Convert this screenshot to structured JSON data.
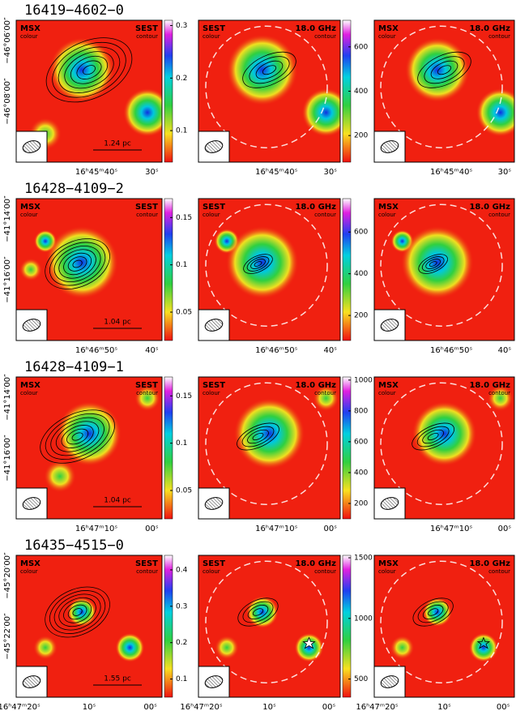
{
  "panel_labels": [
    {
      "left": "MSX",
      "left_sub": "colour",
      "right": "SEST",
      "right_sub": "contour"
    },
    {
      "left": "SEST",
      "left_sub": "colour",
      "right": "18.0 GHz",
      "right_sub": "contour"
    },
    {
      "left": "MSX",
      "left_sub": "colour",
      "right": "18.0 GHz",
      "right_sub": "contour"
    }
  ],
  "rows": [
    {
      "title": "16419−4602−0",
      "scale_bar": "1.24 pc",
      "ra_ticks": [
        "16ʰ45ᵐ40ˢ",
        "30ˢ"
      ],
      "dec_ticks": [
        "−46°06′00″",
        "−46°08′00″"
      ],
      "colorbars": [
        {
          "lim": [
            0.04,
            0.31
          ],
          "ticks": [
            0.1,
            0.2,
            0.3
          ]
        },
        {
          "lim": [
            80,
            720
          ],
          "ticks": [
            200,
            400,
            600
          ]
        }
      ]
    },
    {
      "title": "16428−4109−2",
      "scale_bar": "1.04 pc",
      "ra_ticks": [
        "16ʰ46ᵐ50ˢ",
        "40ˢ"
      ],
      "dec_ticks": [
        "−41°14′00″",
        "−41°16′00″"
      ],
      "colorbars": [
        {
          "lim": [
            0.02,
            0.17
          ],
          "ticks": [
            0.05,
            0.1,
            0.15
          ]
        },
        {
          "lim": [
            80,
            760
          ],
          "ticks": [
            200,
            400,
            600
          ]
        }
      ]
    },
    {
      "title": "16428−4109−1",
      "scale_bar": "1.04 pc",
      "ra_ticks": [
        "16ʰ47ᵐ10ˢ",
        "00ˢ"
      ],
      "dec_ticks": [
        "−41°14′00″",
        "−41°16′00″"
      ],
      "colorbars": [
        {
          "lim": [
            0.02,
            0.17
          ],
          "ticks": [
            0.05,
            0.1,
            0.15
          ]
        },
        {
          "lim": [
            100,
            1020
          ],
          "ticks": [
            200,
            400,
            600,
            800,
            1000
          ]
        }
      ]
    },
    {
      "title": "16435−4515−0",
      "scale_bar": "1.55 pc",
      "ra_ticks": [
        "16ʰ47ᵐ20ˢ",
        "10ˢ",
        "00ˢ"
      ],
      "dec_ticks": [
        "−45°20′00″",
        "−45°22′00″"
      ],
      "colorbars": [
        {
          "lim": [
            0.05,
            0.44
          ],
          "ticks": [
            0.1,
            0.2,
            0.3,
            0.4
          ]
        },
        {
          "lim": [
            350,
            1520
          ],
          "ticks": [
            500,
            1000,
            1500
          ]
        }
      ]
    }
  ]
}
